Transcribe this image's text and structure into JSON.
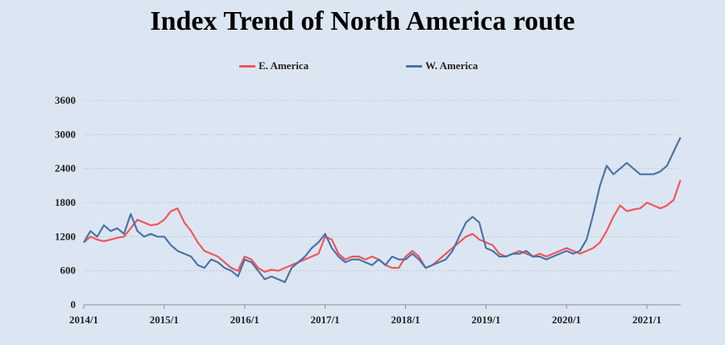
{
  "chart_data": {
    "type": "line",
    "title": "Index Trend of North America route",
    "xlabel": "",
    "ylabel": "",
    "ylim": [
      0,
      3600
    ],
    "yticks": [
      0,
      600,
      1200,
      1800,
      2400,
      3000,
      3600
    ],
    "xticks": [
      "2014/1",
      "2015/1",
      "2016/1",
      "2017/1",
      "2018/1",
      "2019/1",
      "2020/1",
      "2021/1"
    ],
    "xlim": [
      "2014/1",
      "2021/6"
    ],
    "grid": true,
    "legend_position": "top",
    "series": [
      {
        "name": "E. America",
        "color": "#f0555a",
        "x": [
          "2014/1",
          "2014/2",
          "2014/3",
          "2014/4",
          "2014/5",
          "2014/6",
          "2014/7",
          "2014/8",
          "2014/9",
          "2014/10",
          "2014/11",
          "2014/12",
          "2015/1",
          "2015/2",
          "2015/3",
          "2015/4",
          "2015/5",
          "2015/6",
          "2015/7",
          "2015/8",
          "2015/9",
          "2015/10",
          "2015/11",
          "2015/12",
          "2016/1",
          "2016/2",
          "2016/3",
          "2016/4",
          "2016/5",
          "2016/6",
          "2016/7",
          "2016/8",
          "2016/9",
          "2016/10",
          "2016/11",
          "2016/12",
          "2017/1",
          "2017/2",
          "2017/3",
          "2017/4",
          "2017/5",
          "2017/6",
          "2017/7",
          "2017/8",
          "2017/9",
          "2017/10",
          "2017/11",
          "2017/12",
          "2018/1",
          "2018/2",
          "2018/3",
          "2018/4",
          "2018/5",
          "2018/6",
          "2018/7",
          "2018/8",
          "2018/9",
          "2018/10",
          "2018/11",
          "2018/12",
          "2019/1",
          "2019/2",
          "2019/3",
          "2019/4",
          "2019/5",
          "2019/6",
          "2019/7",
          "2019/8",
          "2019/9",
          "2019/10",
          "2019/11",
          "2019/12",
          "2020/1",
          "2020/2",
          "2020/3",
          "2020/4",
          "2020/5",
          "2020/6",
          "2020/7",
          "2020/8",
          "2020/9",
          "2020/10",
          "2020/11",
          "2020/12",
          "2021/1",
          "2021/2",
          "2021/3",
          "2021/4",
          "2021/5",
          "2021/6"
        ],
        "values": [
          1100,
          1200,
          1150,
          1120,
          1150,
          1180,
          1200,
          1350,
          1500,
          1450,
          1400,
          1420,
          1500,
          1650,
          1700,
          1450,
          1300,
          1100,
          950,
          900,
          850,
          750,
          650,
          600,
          850,
          800,
          650,
          580,
          620,
          600,
          650,
          700,
          750,
          800,
          850,
          900,
          1200,
          1150,
          900,
          800,
          850,
          850,
          800,
          850,
          800,
          700,
          650,
          650,
          850,
          950,
          850,
          650,
          700,
          800,
          900,
          1000,
          1100,
          1200,
          1250,
          1150,
          1100,
          1050,
          900,
          850,
          900,
          950,
          900,
          850,
          900,
          850,
          900,
          950,
          1000,
          950,
          900,
          950,
          1000,
          1100,
          1300,
          1550,
          1750,
          1650,
          1680,
          1700,
          1800,
          1750,
          1700,
          1750,
          1850,
          2200
        ]
      },
      {
        "name": "W. America",
        "color": "#4a72a8",
        "x": [
          "2014/1",
          "2014/2",
          "2014/3",
          "2014/4",
          "2014/5",
          "2014/6",
          "2014/7",
          "2014/8",
          "2014/9",
          "2014/10",
          "2014/11",
          "2014/12",
          "2015/1",
          "2015/2",
          "2015/3",
          "2015/4",
          "2015/5",
          "2015/6",
          "2015/7",
          "2015/8",
          "2015/9",
          "2015/10",
          "2015/11",
          "2015/12",
          "2016/1",
          "2016/2",
          "2016/3",
          "2016/4",
          "2016/5",
          "2016/6",
          "2016/7",
          "2016/8",
          "2016/9",
          "2016/10",
          "2016/11",
          "2016/12",
          "2017/1",
          "2017/2",
          "2017/3",
          "2017/4",
          "2017/5",
          "2017/6",
          "2017/7",
          "2017/8",
          "2017/9",
          "2017/10",
          "2017/11",
          "2017/12",
          "2018/1",
          "2018/2",
          "2018/3",
          "2018/4",
          "2018/5",
          "2018/6",
          "2018/7",
          "2018/8",
          "2018/9",
          "2018/10",
          "2018/11",
          "2018/12",
          "2019/1",
          "2019/2",
          "2019/3",
          "2019/4",
          "2019/5",
          "2019/6",
          "2019/7",
          "2019/8",
          "2019/9",
          "2019/10",
          "2019/11",
          "2019/12",
          "2020/1",
          "2020/2",
          "2020/3",
          "2020/4",
          "2020/5",
          "2020/6",
          "2020/7",
          "2020/8",
          "2020/9",
          "2020/10",
          "2020/11",
          "2020/12",
          "2021/1",
          "2021/2",
          "2021/3",
          "2021/4",
          "2021/5",
          "2021/6"
        ],
        "values": [
          1100,
          1300,
          1200,
          1400,
          1300,
          1350,
          1250,
          1600,
          1300,
          1200,
          1250,
          1200,
          1200,
          1050,
          950,
          900,
          850,
          700,
          650,
          800,
          750,
          650,
          600,
          500,
          800,
          750,
          600,
          450,
          500,
          450,
          400,
          650,
          750,
          850,
          1000,
          1100,
          1250,
          1000,
          850,
          750,
          800,
          800,
          750,
          700,
          800,
          700,
          850,
          800,
          800,
          900,
          800,
          650,
          700,
          750,
          800,
          950,
          1200,
          1450,
          1550,
          1450,
          1000,
          950,
          850,
          850,
          900,
          900,
          950,
          850,
          850,
          800,
          850,
          900,
          950,
          900,
          950,
          1150,
          1600,
          2100,
          2450,
          2300,
          2400,
          2500,
          2400,
          2300,
          2300,
          2300,
          2350,
          2450,
          2700,
          2950
        ]
      }
    ]
  }
}
